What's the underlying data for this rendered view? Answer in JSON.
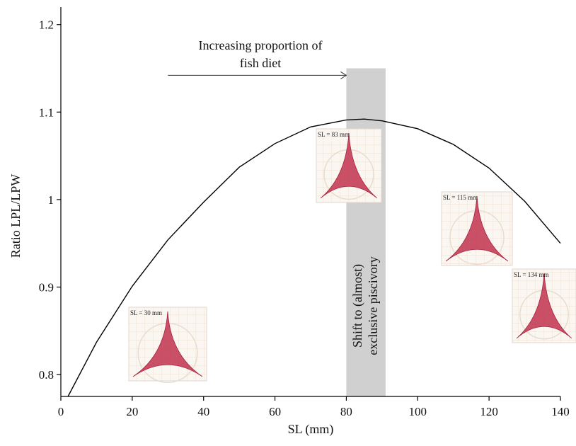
{
  "chart_data": {
    "type": "line",
    "title": "",
    "xlabel": "SL (mm)",
    "ylabel": "Ratio LPL/LPW",
    "xlim": [
      0,
      140
    ],
    "ylim": [
      0.775,
      1.22
    ],
    "x_ticks": [
      0,
      20,
      40,
      60,
      80,
      100,
      120,
      140
    ],
    "x_tick_labels": [
      "0",
      "20",
      "40",
      "60",
      "80",
      "100",
      "120",
      "140"
    ],
    "y_ticks": [
      0.8,
      0.9,
      1.0,
      1.1,
      1.2
    ],
    "y_tick_labels": [
      "0.8",
      "0.9",
      "1",
      "1.1",
      "1.2"
    ],
    "grid": false,
    "series": [
      {
        "x": [
          2,
          10,
          20,
          30,
          40,
          50,
          60,
          70,
          80,
          85,
          90,
          100,
          110,
          120,
          130,
          140
        ],
        "y": [
          0.775,
          0.837,
          0.901,
          0.954,
          0.997,
          1.037,
          1.064,
          1.083,
          1.091,
          1.092,
          1.09,
          1.081,
          1.063,
          1.036,
          0.998,
          0.95
        ]
      }
    ],
    "shaded_region": {
      "x": [
        80,
        91
      ],
      "y": [
        0.775,
        1.15
      ],
      "color": "#d0d0d0"
    },
    "arrow": {
      "x_start": 30,
      "x_end": 80,
      "y": 1.142
    },
    "annotations": {
      "arrow_text_line1": "Increasing proportion of",
      "arrow_text_line2": "fish diet",
      "band_text_line1": "Shift to (almost)",
      "band_text_line2": "exclusive piscivory"
    },
    "insets": [
      {
        "label": "SL = 30 mm",
        "icon": "pharyngeal-bone-image"
      },
      {
        "label": "SL = 83 mm",
        "icon": "pharyngeal-bone-image"
      },
      {
        "label": "SL = 115 mm",
        "icon": "pharyngeal-bone-image"
      },
      {
        "label": "SL = 134 mm",
        "icon": "pharyngeal-bone-image"
      }
    ],
    "colors": {
      "curve": "#000000",
      "band": "#d0d0d0",
      "bone": "#c0334f"
    }
  }
}
